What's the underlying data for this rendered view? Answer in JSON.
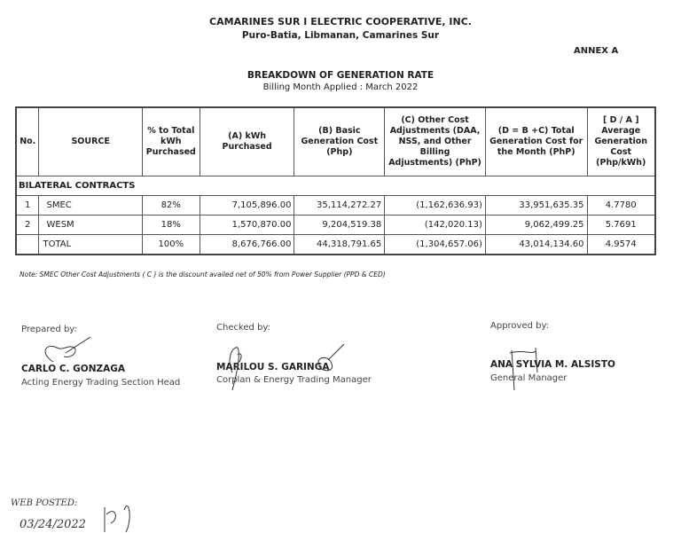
{
  "header": {
    "company": "CAMARINES SUR I ELECTRIC COOPERATIVE, INC.",
    "address": "Puro-Batia, Libmanan, Camarines Sur",
    "annex": "ANNEX A",
    "title": "BREAKDOWN OF GENERATION RATE",
    "billing_month": "Billing Month Applied : March 2022"
  },
  "table": {
    "columns": [
      "No.",
      "SOURCE",
      "% to Total kWh Purchased",
      "(A) kWh Purchased",
      "(B) Basic Generation Cost (Php)",
      "(C) Other Cost Adjustments (DAA, NSS, and Other Billing Adjustments) (PhP)",
      "(D = B +C) Total Generation Cost for the Month (PhP)",
      "[ D / A ] Average Generation Cost (Php/kWh)"
    ],
    "section": "BILATERAL CONTRACTS",
    "rows": [
      [
        "1",
        "SMEC",
        "82%",
        "7,105,896.00",
        "35,114,272.27",
        "(1,162,636.93)",
        "33,951,635.35",
        "4.7780"
      ],
      [
        "2",
        "WESM",
        "18%",
        "1,570,870.00",
        "9,204,519.38",
        "(142,020.13)",
        "9,062,499.25",
        "5.7691"
      ],
      [
        "",
        "TOTAL",
        "100%",
        "8,676,766.00",
        "44,318,791.65",
        "(1,304,657.06)",
        "43,014,134.60",
        "4.9574"
      ]
    ]
  },
  "note": "Note: SMEC Other Cost Adjustments ( C ) is   the discount availed net of 50% from Power Supplier (PPD  & CED)",
  "signatories": [
    {
      "label": "Prepared by:",
      "name": "CARLO C. GONZAGA",
      "position": "Acting Energy Trading Section Head"
    },
    {
      "label": "Checked by:",
      "name": "MARILOU S. GARINGA",
      "position": "Corplan & Energy Trading Manager"
    },
    {
      "label": "Approved by:",
      "name": "ANA SYLVIA M. ALSISTO",
      "position": "General Manager"
    }
  ],
  "handwritten": {
    "posted": "WEB POSTED:",
    "date": "03/24/2022"
  }
}
